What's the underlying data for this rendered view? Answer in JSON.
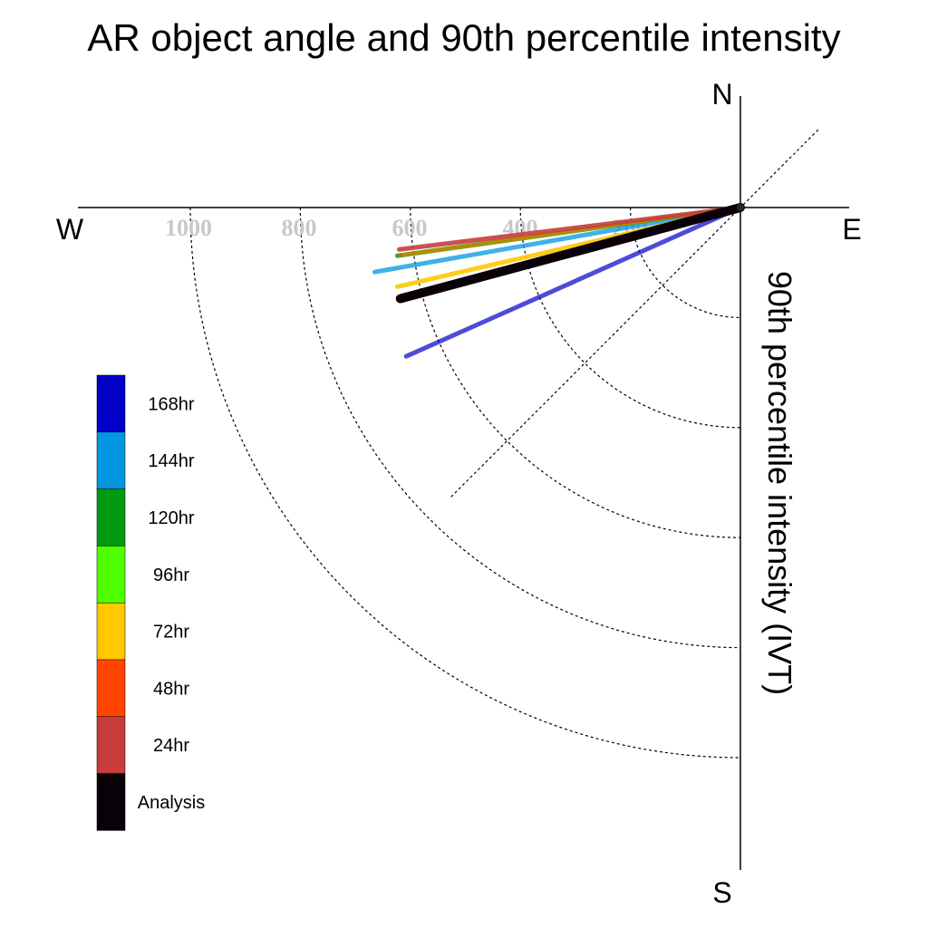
{
  "chart_data": {
    "type": "polar",
    "title": "AR object angle and 90th percentile intensity",
    "ylabel": "90th percentile intensity (IVT)",
    "compass": {
      "north": "N",
      "south": "S",
      "east": "E",
      "west": "W"
    },
    "radial_ticks": [
      200,
      400,
      600,
      800,
      1000
    ],
    "tick_labels": [
      "1000",
      "800",
      "600",
      "400",
      "200"
    ],
    "radial_max": 1200,
    "angle_reference": "north",
    "angle_direction": "clockwise",
    "grid": true,
    "legend_placement": "left",
    "series": [
      {
        "name": "168hr",
        "color": "#0000c8",
        "angle_deg": 246,
        "intensity": 665,
        "width": 5,
        "opacity": 0.7
      },
      {
        "name": "144hr",
        "color": "#0096e0",
        "angle_deg": 260,
        "intensity": 675,
        "width": 5,
        "opacity": 0.75
      },
      {
        "name": "120hr",
        "color": "#009a10",
        "angle_deg": 262,
        "intensity": 630,
        "width": 5,
        "opacity": 0.8
      },
      {
        "name": "96hr",
        "color": "#50ff00",
        "angle_deg": 262,
        "intensity": 620,
        "width": 4,
        "opacity": 0.8
      },
      {
        "name": "72hr",
        "color": "#ffc800",
        "angle_deg": 257,
        "intensity": 640,
        "width": 5,
        "opacity": 0.9
      },
      {
        "name": "48hr",
        "color": "#ff4600",
        "angle_deg": 262,
        "intensity": 625,
        "width": 4,
        "opacity": 0.6
      },
      {
        "name": "24hr",
        "color": "#c83c3c",
        "angle_deg": 263,
        "intensity": 625,
        "width": 5,
        "opacity": 0.9
      },
      {
        "name": "Analysis",
        "color": "#0a0008",
        "angle_deg": 255,
        "intensity": 640,
        "width": 10,
        "opacity": 1.0
      }
    ]
  }
}
